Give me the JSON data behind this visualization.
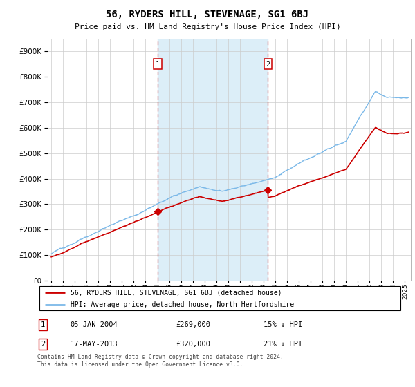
{
  "title": "56, RYDERS HILL, STEVENAGE, SG1 6BJ",
  "subtitle": "Price paid vs. HM Land Registry's House Price Index (HPI)",
  "hpi_color": "#7ab8e8",
  "price_color": "#cc0000",
  "shade_color": "#dceef8",
  "marker1_date": 2004.04,
  "marker1_price": 269000,
  "marker1_label": "1",
  "marker1_text": "05-JAN-2004",
  "marker1_value": "£269,000",
  "marker1_pct": "15% ↓ HPI",
  "marker2_date": 2013.38,
  "marker2_price": 320000,
  "marker2_label": "2",
  "marker2_text": "17-MAY-2013",
  "marker2_value": "£320,000",
  "marker2_pct": "21% ↓ HPI",
  "ylim_min": 0,
  "ylim_max": 950000,
  "xmin": 1994.7,
  "xmax": 2025.5,
  "legend_line1": "56, RYDERS HILL, STEVENAGE, SG1 6BJ (detached house)",
  "legend_line2": "HPI: Average price, detached house, North Hertfordshire",
  "footer": "Contains HM Land Registry data © Crown copyright and database right 2024.\nThis data is licensed under the Open Government Licence v3.0."
}
